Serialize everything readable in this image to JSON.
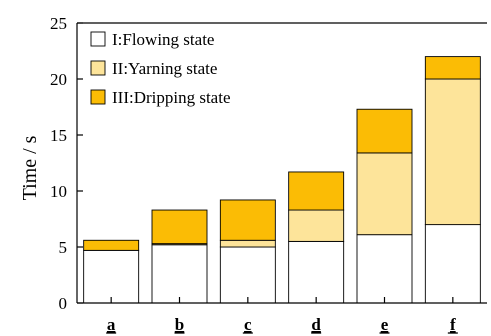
{
  "chart_data": {
    "type": "bar",
    "stacked": true,
    "categories": [
      "a",
      "b",
      "c",
      "d",
      "e",
      "f"
    ],
    "series": [
      {
        "name": "I:Flowing state",
        "color": "#ffffff",
        "values": [
          4.7,
          5.2,
          5.0,
          5.5,
          6.1,
          7.0
        ]
      },
      {
        "name": "II:Yarning state",
        "color": "#fde49a",
        "values": [
          0.0,
          0.1,
          0.6,
          2.8,
          7.3,
          13.0
        ]
      },
      {
        "name": "III:Dripping state",
        "color": "#fbbc05",
        "values": [
          0.9,
          3.0,
          3.6,
          3.4,
          3.9,
          2.0
        ]
      }
    ],
    "title": "",
    "xlabel": "",
    "ylabel": "Time / s",
    "ylim": [
      0,
      25
    ],
    "yticks": [
      "0",
      "5",
      "10",
      "15",
      "20",
      "25"
    ],
    "grid": false,
    "legend_position": "top-left"
  }
}
